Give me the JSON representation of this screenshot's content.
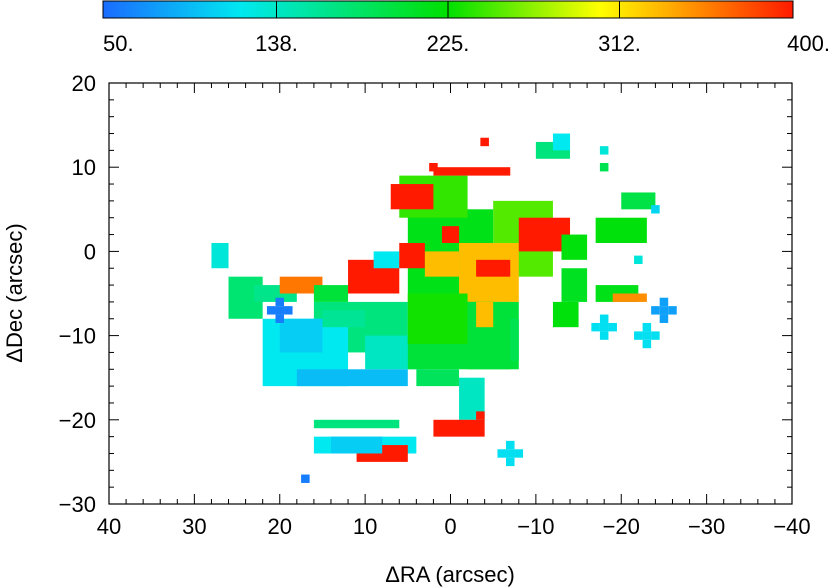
{
  "chart_data": {
    "type": "heatmap",
    "xlabel": "ΔRA (arcsec)",
    "ylabel": "ΔDec (arcsec)",
    "xlim": [
      40,
      -40
    ],
    "ylim": [
      -30,
      20
    ],
    "x_ticks": [
      40,
      30,
      20,
      10,
      0,
      -10,
      -20,
      -30,
      -40
    ],
    "x_tick_labels": [
      "40",
      "30",
      "20",
      "10",
      "0",
      "−10",
      "−20",
      "−30",
      "−40"
    ],
    "y_ticks": [
      20,
      10,
      0,
      -10,
      -20,
      -30
    ],
    "y_tick_labels": [
      "20",
      "10",
      "0",
      "−10",
      "−20",
      "−30"
    ],
    "colorbar": {
      "range": [
        50,
        400
      ],
      "ticks": [
        50,
        138,
        225,
        312,
        400
      ],
      "tick_labels": [
        "50.",
        "138.",
        "225.",
        "312.",
        "400."
      ],
      "colors": [
        "#1a6cff",
        "#00e8f0",
        "#00e000",
        "#ffff00",
        "#ff8c00",
        "#ff1a00"
      ]
    },
    "pixel_size": 1,
    "regions": [
      {
        "type": "rect",
        "x1": -5,
        "x2": -12,
        "y1": -3,
        "y2": 6,
        "value": 250
      },
      {
        "type": "rect",
        "x1": 5,
        "x2": -5,
        "y1": -6,
        "y2": 5,
        "value": 215
      },
      {
        "type": "rect",
        "x1": -1,
        "x2": -8,
        "y1": -6,
        "y2": 1,
        "value": 330
      },
      {
        "type": "rect",
        "x1": -3,
        "x2": -7,
        "y1": -3,
        "y2": -1,
        "value": 400
      },
      {
        "type": "rect",
        "x1": 6,
        "x2": -2,
        "y1": 4,
        "y2": 9,
        "value": 240
      },
      {
        "type": "rect",
        "x1": 2,
        "x2": -7,
        "y1": 9,
        "y2": 10,
        "value": 400
      },
      {
        "type": "rect",
        "x1": 7,
        "x2": 2,
        "y1": 5,
        "y2": 8,
        "value": 400
      },
      {
        "type": "rect",
        "x1": -8,
        "x2": -14,
        "y1": 0,
        "y2": 4,
        "value": 400
      },
      {
        "type": "rect",
        "x1": -13,
        "x2": -16,
        "y1": -1,
        "y2": 2,
        "value": 220
      },
      {
        "type": "rect",
        "x1": -13,
        "x2": -16,
        "y1": -6,
        "y2": -2,
        "value": 210
      },
      {
        "type": "rect",
        "x1": -17,
        "x2": -23,
        "y1": 1,
        "y2": 4,
        "value": 220
      },
      {
        "type": "rect",
        "x1": -17,
        "x2": -22,
        "y1": -6,
        "y2": -4,
        "value": 215
      },
      {
        "type": "rect",
        "x1": -19,
        "x2": -23,
        "y1": -6,
        "y2": -5,
        "value": 350
      },
      {
        "type": "rect",
        "x1": -20,
        "x2": -24,
        "y1": 5,
        "y2": 7,
        "value": 195
      },
      {
        "type": "rect",
        "x1": -10,
        "x2": -14,
        "y1": 11,
        "y2": 13,
        "value": 170
      },
      {
        "type": "rect",
        "x1": -12,
        "x2": -14,
        "y1": 12,
        "y2": 14,
        "value": 120
      },
      {
        "type": "rect",
        "x1": 16,
        "x2": 5,
        "y1": -12,
        "y2": -6,
        "value": 170
      },
      {
        "type": "rect",
        "x1": 10,
        "x2": 3,
        "y1": -14,
        "y2": -10,
        "value": 140
      },
      {
        "type": "rect",
        "x1": 5,
        "x2": -7,
        "y1": -14,
        "y2": -6,
        "value": 200
      },
      {
        "type": "rect",
        "x1": 5,
        "x2": -2,
        "y1": -11,
        "y2": -5,
        "value": 230
      },
      {
        "type": "rect",
        "x1": -2,
        "x2": -8,
        "y1": -14,
        "y2": -6,
        "value": 200
      },
      {
        "type": "rect",
        "x1": 22,
        "x2": 12,
        "y1": -16,
        "y2": -8,
        "value": 120
      },
      {
        "type": "rect",
        "x1": 18,
        "x2": 5,
        "y1": -16,
        "y2": -14,
        "value": 95
      },
      {
        "type": "rect",
        "x1": 20,
        "x2": 15,
        "y1": -12,
        "y2": -8,
        "value": 105
      },
      {
        "type": "rect",
        "x1": -1,
        "x2": -4,
        "y1": -20,
        "y2": -15,
        "value": 140
      },
      {
        "type": "rect",
        "x1": -3,
        "x2": -4,
        "y1": -20,
        "y2": -19,
        "value": 400
      },
      {
        "type": "rect",
        "x1": 2,
        "x2": -4,
        "y1": -22,
        "y2": -20,
        "value": 400
      },
      {
        "type": "rect",
        "x1": 16,
        "x2": 6,
        "y1": -21,
        "y2": -20,
        "value": 170
      },
      {
        "type": "rect",
        "x1": 16,
        "x2": 4,
        "y1": -24,
        "y2": -22,
        "value": 120
      },
      {
        "type": "rect",
        "x1": 11,
        "x2": 5,
        "y1": -25,
        "y2": -23,
        "value": 400
      },
      {
        "type": "rect",
        "x1": 14,
        "x2": 8,
        "y1": -24,
        "y2": -22,
        "value": 105
      },
      {
        "type": "rect",
        "x1": 28,
        "x2": 26,
        "y1": -2,
        "y2": 1,
        "value": 130
      },
      {
        "type": "rect",
        "x1": 26,
        "x2": 22,
        "y1": -8,
        "y2": -3,
        "value": 175
      },
      {
        "type": "rect",
        "x1": 23,
        "x2": 18,
        "y1": -6,
        "y2": -4,
        "value": 165
      },
      {
        "type": "rect",
        "x1": 20,
        "x2": 15,
        "y1": -5,
        "y2": -3,
        "value": 360
      },
      {
        "type": "rect",
        "x1": 16,
        "x2": 12,
        "y1": -6,
        "y2": -4,
        "value": 200
      },
      {
        "type": "rect",
        "x1": 12,
        "x2": 6,
        "y1": -5,
        "y2": -1,
        "value": 400
      },
      {
        "type": "rect",
        "x1": 9,
        "x2": 6,
        "y1": -2,
        "y2": 0,
        "value": 120
      },
      {
        "type": "rect",
        "x1": 6,
        "x2": 3,
        "y1": -2,
        "y2": 1,
        "value": 400
      },
      {
        "type": "rect",
        "x1": 3,
        "x2": -1,
        "y1": -3,
        "y2": 0,
        "value": 330
      },
      {
        "type": "rect",
        "x1": 1,
        "x2": -1,
        "y1": 1,
        "y2": 3,
        "value": 400
      },
      {
        "type": "rect",
        "x1": -3,
        "x2": -5,
        "y1": -9,
        "y2": -6,
        "value": 330
      },
      {
        "type": "rect",
        "x1": -7,
        "x2": -8,
        "y1": -13,
        "y2": -8,
        "value": 190
      },
      {
        "type": "rect",
        "x1": -12,
        "x2": -15,
        "y1": -9,
        "y2": -6,
        "value": 220
      },
      {
        "type": "rect",
        "x1": 15,
        "x2": 10,
        "y1": -9,
        "y2": -7,
        "value": 160
      },
      {
        "type": "rect",
        "x1": 4,
        "x2": -1,
        "y1": -16,
        "y2": -14,
        "value": 185
      },
      {
        "type": "point",
        "x": -7,
        "y": -24,
        "value": 115
      },
      {
        "type": "point",
        "x": -7,
        "y": -23,
        "value": 115
      },
      {
        "type": "point",
        "x": -7,
        "y": -25,
        "value": 115
      },
      {
        "type": "point",
        "x": -6,
        "y": -24,
        "value": 115
      },
      {
        "type": "point",
        "x": -8,
        "y": -24,
        "value": 115
      },
      {
        "type": "point",
        "x": -18,
        "y": -9,
        "value": 115
      },
      {
        "type": "point",
        "x": -18,
        "y": -8,
        "value": 115
      },
      {
        "type": "point",
        "x": -18,
        "y": -10,
        "value": 115
      },
      {
        "type": "point",
        "x": -17,
        "y": -9,
        "value": 115
      },
      {
        "type": "point",
        "x": -19,
        "y": -9,
        "value": 115
      },
      {
        "type": "point",
        "x": -23,
        "y": -10,
        "value": 115
      },
      {
        "type": "point",
        "x": -23,
        "y": -9,
        "value": 115
      },
      {
        "type": "point",
        "x": -23,
        "y": -11,
        "value": 115
      },
      {
        "type": "point",
        "x": -22,
        "y": -10,
        "value": 115
      },
      {
        "type": "point",
        "x": -24,
        "y": -10,
        "value": 115
      },
      {
        "type": "point",
        "x": -25,
        "y": -7,
        "value": 80
      },
      {
        "type": "point",
        "x": -25,
        "y": -6,
        "value": 80
      },
      {
        "type": "point",
        "x": -25,
        "y": -8,
        "value": 80
      },
      {
        "type": "point",
        "x": -24,
        "y": -7,
        "value": 80
      },
      {
        "type": "point",
        "x": -26,
        "y": -7,
        "value": 80
      },
      {
        "type": "point",
        "x": 20,
        "y": -7,
        "value": 60
      },
      {
        "type": "point",
        "x": 20,
        "y": -6,
        "value": 60
      },
      {
        "type": "point",
        "x": 20,
        "y": -8,
        "value": 60
      },
      {
        "type": "point",
        "x": 21,
        "y": -7,
        "value": 60
      },
      {
        "type": "point",
        "x": 19,
        "y": -7,
        "value": 60
      },
      {
        "type": "point",
        "x": 17,
        "y": -27,
        "value": 60
      },
      {
        "type": "point",
        "x": 2,
        "y": 10,
        "value": 400
      },
      {
        "type": "point",
        "x": -4,
        "y": 13,
        "value": 400
      },
      {
        "type": "point",
        "x": -18,
        "y": 12,
        "value": 130
      },
      {
        "type": "point",
        "x": -18,
        "y": 10,
        "value": 190
      },
      {
        "type": "point",
        "x": -22,
        "y": -1,
        "value": 130
      },
      {
        "type": "point",
        "x": -24,
        "y": 5,
        "value": 110
      }
    ]
  }
}
